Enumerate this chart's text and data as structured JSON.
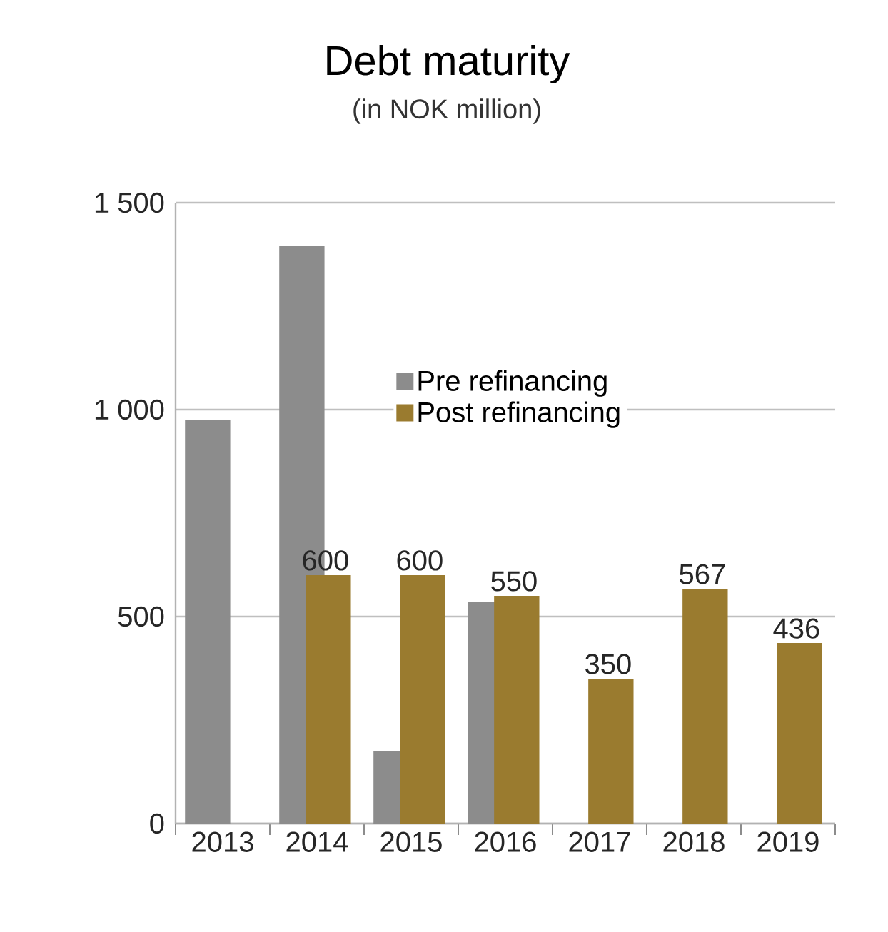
{
  "chart_data": {
    "type": "bar",
    "title": "Debt maturity",
    "subtitle": "(in NOK million)",
    "categories": [
      "2013",
      "2014",
      "2015",
      "2016",
      "2017",
      "2018",
      "2019"
    ],
    "series": [
      {
        "name": "Pre refinancing",
        "color": "#8c8c8c",
        "values": [
          975,
          1395,
          175,
          535,
          null,
          null,
          null
        ]
      },
      {
        "name": "Post refinancing",
        "color": "#9a7b2f",
        "values": [
          null,
          600,
          600,
          550,
          350,
          567,
          436
        ],
        "value_labels": [
          null,
          "600",
          "600",
          "550",
          "350",
          "567",
          "436"
        ]
      }
    ],
    "ylim": [
      0,
      1500
    ],
    "yticks": [
      0,
      500,
      {
        "value": 1000,
        "label": "1 000"
      },
      {
        "value": 1500,
        "label": "1 500"
      }
    ],
    "grid": "y",
    "legend": "center"
  }
}
